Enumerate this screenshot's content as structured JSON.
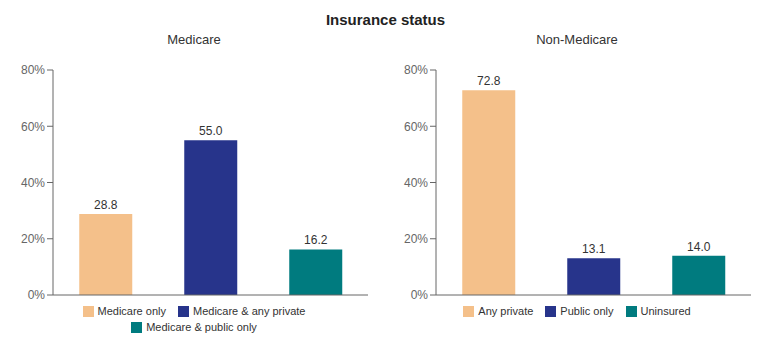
{
  "title": "Insurance status",
  "chart_data": [
    {
      "type": "bar",
      "title": "Medicare",
      "categories": [
        "Medicare only",
        "Medicare & any private",
        "Medicare & public only"
      ],
      "values": [
        28.8,
        55.0,
        16.2
      ],
      "value_labels": [
        "28.8",
        "55.0",
        "16.2"
      ],
      "colors": [
        "#f4c08a",
        "#27348b",
        "#007b7f"
      ],
      "ylim": [
        0,
        80
      ],
      "yticks": [
        {
          "value": 0,
          "label": "0%"
        },
        {
          "value": 20,
          "label": "20%"
        },
        {
          "value": 40,
          "label": "40%"
        },
        {
          "value": 60,
          "label": "60%"
        },
        {
          "value": 80,
          "label": "80%"
        }
      ],
      "data_labels": true,
      "legend": "bottom",
      "grid": false,
      "tick_labels": "y"
    },
    {
      "type": "bar",
      "title": "Non-Medicare",
      "categories": [
        "Any private",
        "Public only",
        "Uninsured"
      ],
      "values": [
        72.8,
        13.1,
        14.0
      ],
      "value_labels": [
        "72.8",
        "13.1",
        "14.0"
      ],
      "colors": [
        "#f4c08a",
        "#27348b",
        "#007b7f"
      ],
      "ylim": [
        0,
        80
      ],
      "yticks": [
        {
          "value": 0,
          "label": "0%"
        },
        {
          "value": 20,
          "label": "20%"
        },
        {
          "value": 40,
          "label": "40%"
        },
        {
          "value": 60,
          "label": "60%"
        },
        {
          "value": 80,
          "label": "80%"
        }
      ],
      "data_labels": true,
      "legend": "bottom",
      "grid": false,
      "tick_labels": "y"
    }
  ]
}
